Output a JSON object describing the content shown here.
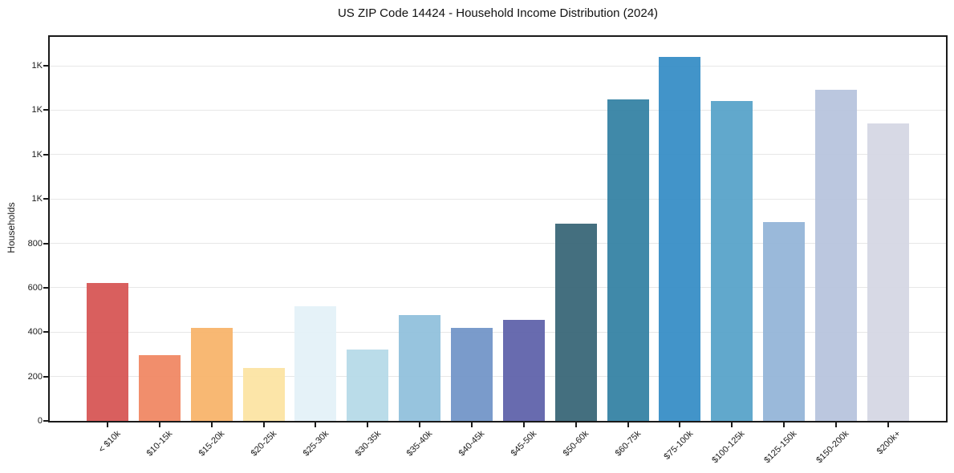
{
  "chart_data": {
    "type": "bar",
    "title": "US ZIP Code 14424 - Household Income Distribution (2024)",
    "xlabel": "",
    "ylabel": "Households",
    "categories": [
      "< $10k",
      "$10-15k",
      "$15-20k",
      "$20-25k",
      "$25-30k",
      "$30-35k",
      "$35-40k",
      "$40-45k",
      "$45-50k",
      "$50-60k",
      "$60-75k",
      "$75-100k",
      "$100-125k",
      "$125-150k",
      "$150-200k",
      "$200k+"
    ],
    "values": [
      620,
      295,
      420,
      240,
      515,
      320,
      475,
      420,
      455,
      890,
      1450,
      1640,
      1440,
      895,
      1490,
      1340
    ],
    "bar_colors": [
      "#d65352",
      "#f08561",
      "#f8b368",
      "#fce3a1",
      "#e3f1f7",
      "#b5d9e7",
      "#8fc0dc",
      "#7093c7",
      "#5d60a9",
      "#366475",
      "#3180a3",
      "#348cc5",
      "#55a1c8",
      "#92b4d7",
      "#b6c3dd",
      "#d4d6e3"
    ],
    "ylim": [
      0,
      1730
    ],
    "yticks": [
      {
        "value": 0,
        "label": "0"
      },
      {
        "value": 200,
        "label": "200"
      },
      {
        "value": 400,
        "label": "400"
      },
      {
        "value": 600,
        "label": "600"
      },
      {
        "value": 800,
        "label": "800"
      },
      {
        "value": 1000,
        "label": "1K"
      },
      {
        "value": 1200,
        "label": "1K"
      },
      {
        "value": 1400,
        "label": "1K"
      },
      {
        "value": 1600,
        "label": "1K"
      }
    ],
    "grid": "horizontal",
    "legend_position": "none"
  },
  "colors": {
    "background": "#ffffff",
    "gridline": "#e7e7e7",
    "spine": "#1a1a1a",
    "text": "#1c1c1c"
  }
}
